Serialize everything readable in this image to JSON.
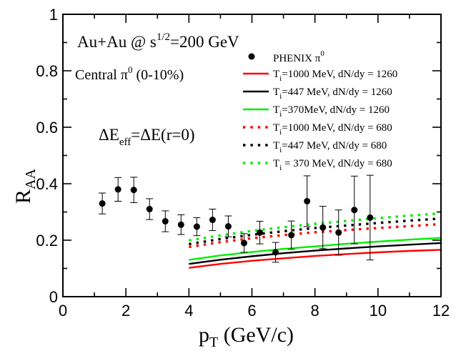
{
  "chart_data": {
    "type": "scatter",
    "title": "",
    "xlabel": "p",
    "xlabel_sub": "T",
    "xlabel_unit": " (GeV/c)",
    "ylabel": "R",
    "ylabel_sub": "AA",
    "xlim": [
      0,
      12
    ],
    "ylim": [
      0,
      1
    ],
    "x_ticks": [
      "0",
      "2",
      "4",
      "6",
      "8",
      "10",
      "12"
    ],
    "y_ticks": [
      "0",
      "0.2",
      "0.4",
      "0.6",
      "0.8",
      "1"
    ],
    "grid": false,
    "legend_position": "top-right",
    "annotations": {
      "line1_a": "Au+Au @  s",
      "line1_sup": "1/2",
      "line1_b": "=200 GeV",
      "line2_a": "Central  π",
      "line2_sup": "0",
      "line2_b": " (0-10%)",
      "line3_a": "ΔE",
      "line3_sub": "eff",
      "line3_b": "=ΔE(r=0)"
    },
    "data_series": {
      "name": "PHENIX π",
      "name_sup": "0",
      "color": "#000000",
      "x": [
        1.25,
        1.75,
        2.25,
        2.75,
        3.25,
        3.75,
        4.25,
        4.75,
        5.25,
        5.75,
        6.25,
        6.75,
        7.25,
        7.75,
        8.25,
        8.75,
        9.25,
        9.75
      ],
      "y": [
        0.33,
        0.38,
        0.378,
        0.31,
        0.267,
        0.255,
        0.248,
        0.272,
        0.249,
        0.19,
        0.227,
        0.157,
        0.218,
        0.338,
        0.245,
        0.227,
        0.307,
        0.28
      ],
      "err": [
        0.037,
        0.042,
        0.045,
        0.037,
        0.037,
        0.035,
        0.032,
        0.038,
        0.037,
        0.033,
        0.04,
        0.035,
        0.05,
        0.09,
        0.075,
        0.08,
        0.12,
        0.15
      ]
    },
    "series": [
      {
        "name_a": "T",
        "name_sub": "i",
        "name_b": "=1000 MeV, dN/dy = 1260",
        "color": "#ff0000",
        "dash": "solid",
        "x": [
          4,
          5,
          6,
          7,
          8,
          9,
          10,
          11,
          12
        ],
        "y": [
          0.102,
          0.116,
          0.127,
          0.136,
          0.144,
          0.151,
          0.157,
          0.162,
          0.166
        ]
      },
      {
        "name_a": "T",
        "name_sub": "i",
        "name_b": "=447 MeV, dN/dy = 1260",
        "color": "#000000",
        "dash": "solid",
        "x": [
          4,
          5,
          6,
          7,
          8,
          9,
          10,
          11,
          12
        ],
        "y": [
          0.116,
          0.131,
          0.143,
          0.154,
          0.163,
          0.171,
          0.178,
          0.184,
          0.19
        ]
      },
      {
        "name_a": "T",
        "name_sub": "i",
        "name_b": "=370MeV, dN/dy = 1260",
        "color": "#00ee00",
        "dash": "solid",
        "x": [
          4,
          5,
          6,
          7,
          8,
          9,
          10,
          11,
          12
        ],
        "y": [
          0.13,
          0.146,
          0.158,
          0.169,
          0.178,
          0.187,
          0.195,
          0.202,
          0.208
        ]
      },
      {
        "name_a": "T",
        "name_sub": "i",
        "name_b": "=1000 MeV, dN/dy = 680",
        "color": "#ff0000",
        "dash": "dotted",
        "x": [
          4,
          5,
          6,
          7,
          8,
          9,
          10,
          11,
          12
        ],
        "y": [
          0.176,
          0.193,
          0.207,
          0.218,
          0.228,
          0.236,
          0.243,
          0.25,
          0.257
        ]
      },
      {
        "name_a": "T",
        "name_sub": "i",
        "name_b": "=447 MeV, dN/dy = 680",
        "color": "#000000",
        "dash": "dotted",
        "x": [
          4,
          5,
          6,
          7,
          8,
          9,
          10,
          11,
          12
        ],
        "y": [
          0.186,
          0.204,
          0.219,
          0.232,
          0.243,
          0.252,
          0.261,
          0.269,
          0.277
        ]
      },
      {
        "name_a": "T",
        "name_sub": "i",
        "name_b": " = 370 MeV, dN/dy = 680",
        "color": "#00ee00",
        "dash": "dotted",
        "x": [
          4,
          5,
          6,
          7,
          8,
          9,
          10,
          11,
          12
        ],
        "y": [
          0.199,
          0.217,
          0.233,
          0.246,
          0.258,
          0.268,
          0.278,
          0.287,
          0.295
        ]
      }
    ]
  }
}
